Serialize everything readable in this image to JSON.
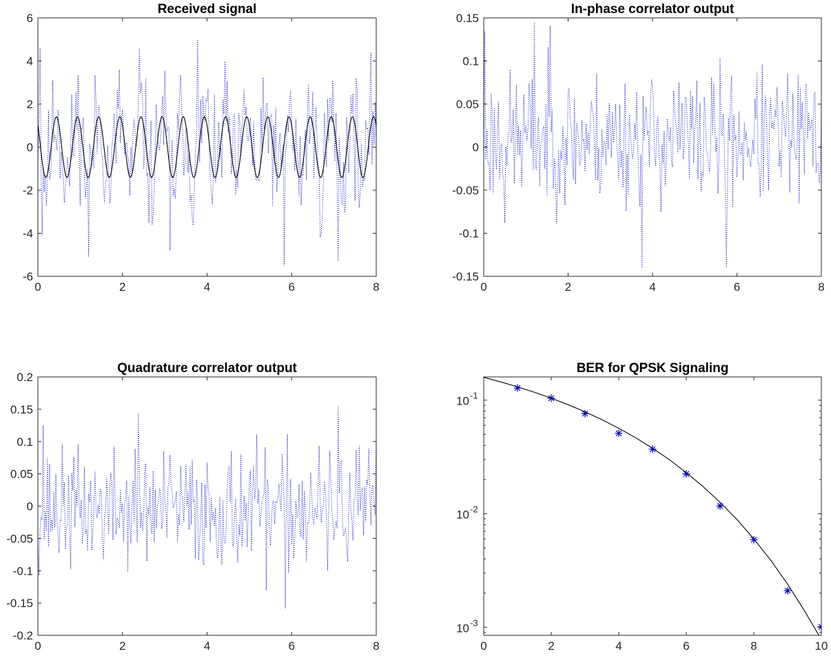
{
  "colors": {
    "noise": "#0000cc",
    "signal": "#000000",
    "axes": "#262626",
    "markers": "#0000aa"
  },
  "chart_data": [
    {
      "id": "received",
      "type": "line",
      "title": "Received signal",
      "xlabel": "",
      "ylabel": "",
      "xlim": [
        0,
        8
      ],
      "ylim": [
        -6,
        6
      ],
      "xticks": [
        0,
        2,
        4,
        6,
        8
      ],
      "xtick_labels": [
        "0",
        "2",
        "4",
        "6",
        "8"
      ],
      "yticks": [
        -6,
        -4,
        -2,
        0,
        2,
        4,
        6
      ],
      "ytick_labels": [
        "-6",
        "-4",
        "-2",
        "0",
        "2",
        "4",
        "6"
      ],
      "grid": false,
      "series": [
        {
          "style": "dotted",
          "color": "#0000cc",
          "noise": {
            "seed": 11,
            "n": 320,
            "amp": 1.35,
            "sine_amp": 1.41,
            "period": 0.5,
            "clip": [
              -5.5,
              5.0
            ]
          }
        },
        {
          "style": "solid",
          "color": "#000000",
          "sine": {
            "amp": 1.41,
            "period": 0.5,
            "phase": 0.785
          }
        }
      ],
      "noise_peaks": [
        {
          "x": 0.05,
          "y": 4.6
        },
        {
          "x": 0.1,
          "y": -4.1
        },
        {
          "x": 1.2,
          "y": -5.1
        },
        {
          "x": 3.78,
          "y": 5.0
        },
        {
          "x": 3.12,
          "y": -4.8
        },
        {
          "x": 5.82,
          "y": -5.5
        },
        {
          "x": 7.1,
          "y": -5.3
        },
        {
          "x": 2.4,
          "y": 4.6
        }
      ]
    },
    {
      "id": "inphase",
      "type": "line",
      "title": "In-phase correlator output",
      "xlabel": "",
      "ylabel": "",
      "xlim": [
        0,
        8
      ],
      "ylim": [
        -0.15,
        0.15
      ],
      "xticks": [
        0,
        2,
        4,
        6,
        8
      ],
      "xtick_labels": [
        "0",
        "2",
        "4",
        "6",
        "8"
      ],
      "yticks": [
        -0.15,
        -0.1,
        -0.05,
        0,
        0.05,
        0.1,
        0.15
      ],
      "ytick_labels": [
        "-0.15",
        "-0.1",
        "-0.05",
        "0",
        "0.05",
        "0.1",
        "0.15"
      ],
      "grid": false,
      "series": [
        {
          "style": "dotted",
          "color": "#0000cc",
          "noise": {
            "seed": 23,
            "n": 320,
            "amp": 0.038,
            "offset": 0.01,
            "clip": [
              -0.14,
              0.145
            ]
          }
        }
      ],
      "noise_peaks": [
        {
          "x": 0.02,
          "y": 0.135
        },
        {
          "x": 1.2,
          "y": 0.148
        },
        {
          "x": 1.58,
          "y": 0.141
        },
        {
          "x": 3.75,
          "y": -0.145
        },
        {
          "x": 5.75,
          "y": -0.14
        },
        {
          "x": 0.5,
          "y": -0.088
        }
      ]
    },
    {
      "id": "quadrature",
      "type": "line",
      "title": "Quadrature correlator output",
      "xlabel": "",
      "ylabel": "",
      "xlim": [
        0,
        8
      ],
      "ylim": [
        -0.2,
        0.2
      ],
      "xticks": [
        0,
        2,
        4,
        6,
        8
      ],
      "xtick_labels": [
        "0",
        "2",
        "4",
        "6",
        "8"
      ],
      "yticks": [
        -0.2,
        -0.15,
        -0.1,
        -0.05,
        0,
        0.05,
        0.1,
        0.15,
        0.2
      ],
      "ytick_labels": [
        "-0.2",
        "-0.15",
        "-0.1",
        "-0.05",
        "0",
        "0.05",
        "0.1",
        "0.15",
        "0.2"
      ],
      "grid": false,
      "series": [
        {
          "style": "dotted",
          "color": "#0000cc",
          "noise": {
            "seed": 37,
            "n": 320,
            "amp": 0.045,
            "offset": -0.005,
            "clip": [
              -0.16,
              0.155
            ]
          }
        }
      ],
      "noise_peaks": [
        {
          "x": 0.12,
          "y": 0.125
        },
        {
          "x": 2.38,
          "y": 0.143
        },
        {
          "x": 7.1,
          "y": 0.155
        },
        {
          "x": 5.4,
          "y": -0.13
        },
        {
          "x": 5.85,
          "y": -0.158
        },
        {
          "x": 6.85,
          "y": -0.1
        }
      ]
    },
    {
      "id": "ber",
      "type": "line",
      "title": "BER for QPSK Signaling",
      "xlabel": "",
      "ylabel": "",
      "xlim": [
        0,
        10
      ],
      "ylim": [
        0.00085,
        0.16
      ],
      "yscale": "log",
      "xticks": [
        0,
        2,
        4,
        6,
        8,
        10
      ],
      "xtick_labels": [
        "0",
        "2",
        "4",
        "6",
        "8",
        "10"
      ],
      "yticks": [
        0.001,
        0.01,
        0.1
      ],
      "ytick_labels": [
        [
          "10",
          "-3"
        ],
        [
          "10",
          "-2"
        ],
        [
          "10",
          "-1"
        ]
      ],
      "grid": false,
      "series": [
        {
          "style": "solid",
          "color": "#000000",
          "x": [
            0,
            0.5,
            1,
            1.5,
            2,
            2.5,
            3,
            3.5,
            4,
            4.5,
            5,
            5.5,
            6,
            6.5,
            7,
            7.5,
            8,
            8.5,
            9,
            9.5,
            10
          ],
          "y": [
            0.1587,
            0.1447,
            0.1309,
            0.1173,
            0.104,
            0.0911,
            0.0789,
            0.0673,
            0.0565,
            0.0466,
            0.0377,
            0.0299,
            0.023,
            0.0173,
            0.0126,
            0.0089,
            0.006,
            0.0039,
            0.0024,
            0.0014,
            0.00078
          ]
        },
        {
          "style": "marker",
          "marker": "asterisk",
          "color": "#0000aa",
          "x": [
            1,
            2,
            3,
            4,
            5,
            6,
            7,
            8,
            9,
            10
          ],
          "y": [
            0.128,
            0.104,
            0.076,
            0.051,
            0.037,
            0.0224,
            0.0117,
            0.0059,
            0.0021,
            0.00101
          ]
        }
      ]
    }
  ]
}
